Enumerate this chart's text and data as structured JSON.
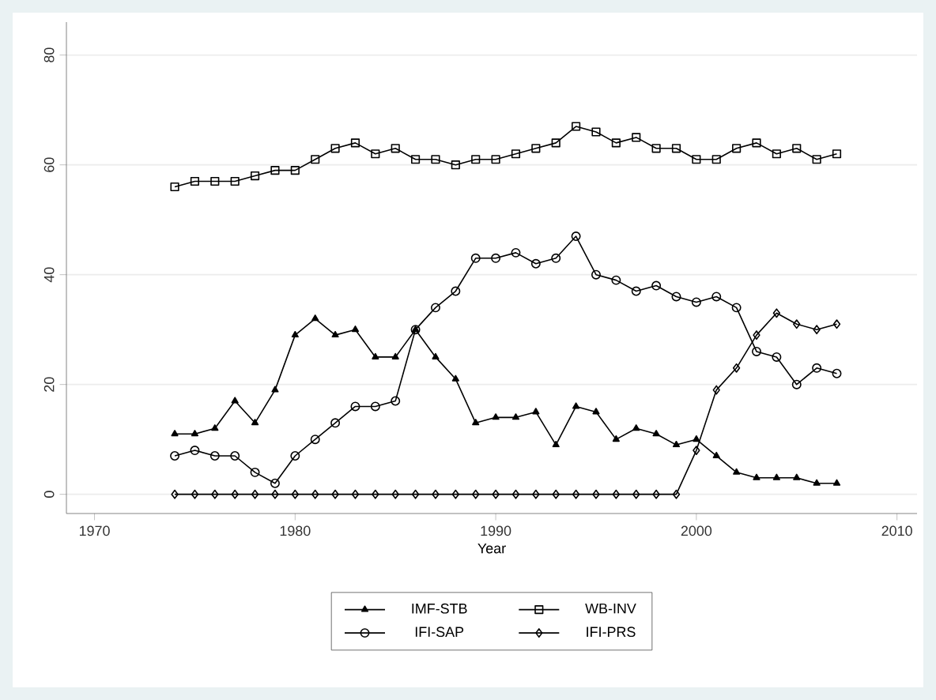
{
  "chart_data": {
    "type": "line",
    "xlabel": "Year",
    "x": [
      1974,
      1975,
      1976,
      1977,
      1978,
      1979,
      1980,
      1981,
      1982,
      1983,
      1984,
      1985,
      1986,
      1987,
      1988,
      1989,
      1990,
      1991,
      1992,
      1993,
      1994,
      1995,
      1996,
      1997,
      1998,
      1999,
      2000,
      2001,
      2002,
      2003,
      2004,
      2005,
      2006,
      2007
    ],
    "series": [
      {
        "name": "IMF-STB",
        "color": "#000000",
        "marker": "triangle",
        "values": [
          11,
          11,
          12,
          17,
          13,
          19,
          29,
          32,
          29,
          30,
          25,
          25,
          30,
          25,
          21,
          13,
          14,
          14,
          15,
          9,
          16,
          15,
          10,
          12,
          11,
          9,
          10,
          7,
          4,
          3,
          3,
          3,
          2,
          2
        ]
      },
      {
        "name": "WB-INV",
        "color": "#000000",
        "marker": "square",
        "values": [
          56,
          57,
          57,
          57,
          58,
          59,
          59,
          61,
          63,
          64,
          62,
          63,
          61,
          61,
          60,
          61,
          61,
          62,
          63,
          64,
          67,
          66,
          64,
          65,
          63,
          63,
          61,
          61,
          63,
          64,
          62,
          63,
          61,
          62
        ]
      },
      {
        "name": "IFI-SAP",
        "color": "#000000",
        "marker": "circle",
        "values": [
          7,
          8,
          7,
          7,
          4,
          2,
          7,
          10,
          13,
          16,
          16,
          17,
          30,
          34,
          37,
          43,
          43,
          44,
          42,
          43,
          47,
          40,
          39,
          37,
          38,
          36,
          35,
          36,
          34,
          26,
          25,
          20,
          23,
          22
        ]
      },
      {
        "name": "IFI-PRS",
        "color": "#000000",
        "marker": "diamond",
        "values": [
          0,
          0,
          0,
          0,
          0,
          0,
          0,
          0,
          0,
          0,
          0,
          0,
          0,
          0,
          0,
          0,
          0,
          0,
          0,
          0,
          0,
          0,
          0,
          0,
          0,
          0,
          8,
          19,
          23,
          29,
          33,
          31,
          30,
          31
        ]
      }
    ],
    "xlim": [
      1968.6,
      2011
    ],
    "ylim": [
      -3.5,
      86
    ],
    "xticks": [
      1970,
      1980,
      1990,
      2000,
      2010
    ],
    "yticks": [
      0,
      20,
      40,
      60,
      80
    ],
    "grid": "y",
    "legend": "bottom",
    "line_style": "solid"
  }
}
